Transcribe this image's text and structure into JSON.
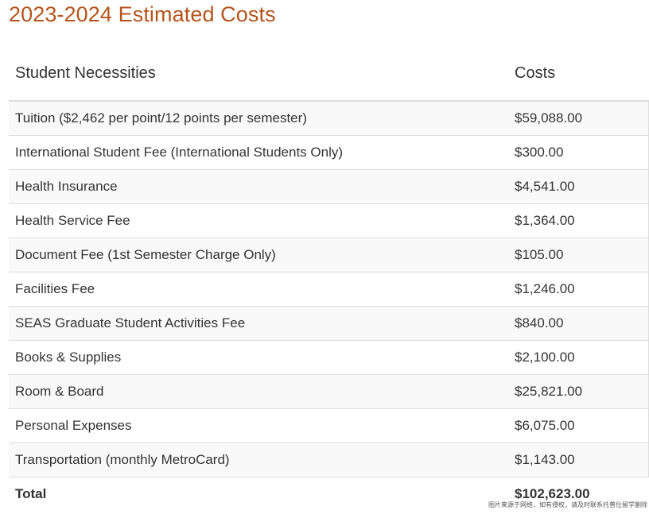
{
  "page": {
    "title": "2023-2024 Estimated Costs"
  },
  "table": {
    "headers": {
      "item": "Student Necessities",
      "cost": "Costs"
    },
    "rows": [
      {
        "item": "Tuition ($2,462 per point/12 points per semester)",
        "cost": "$59,088.00"
      },
      {
        "item": "International Student Fee (International Students Only)",
        "cost": "$300.00"
      },
      {
        "item": "Health Insurance",
        "cost": "$4,541.00"
      },
      {
        "item": "Health Service Fee",
        "cost": "$1,364.00"
      },
      {
        "item": "Document Fee (1st Semester Charge Only)",
        "cost": "$105.00"
      },
      {
        "item": "Facilities Fee",
        "cost": "$1,246.00"
      },
      {
        "item": "SEAS Graduate Student Activities Fee",
        "cost": "$840.00"
      },
      {
        "item": "Books & Supplies",
        "cost": "$2,100.00"
      },
      {
        "item": "Room & Board",
        "cost": "$25,821.00"
      },
      {
        "item": "Personal Expenses",
        "cost": "$6,075.00"
      },
      {
        "item": "Transportation (monthly MetroCard)",
        "cost": "$1,143.00"
      }
    ],
    "total": {
      "label": "Total",
      "value": "$102,623.00"
    }
  },
  "watermark": {
    "text": "图片来源于网络，如有侵权，请及时联系托普仕留学删除"
  },
  "colors": {
    "title": "#b5541c",
    "text": "#333333",
    "stripe": "#f9f9f9",
    "border": "#dddddd"
  }
}
